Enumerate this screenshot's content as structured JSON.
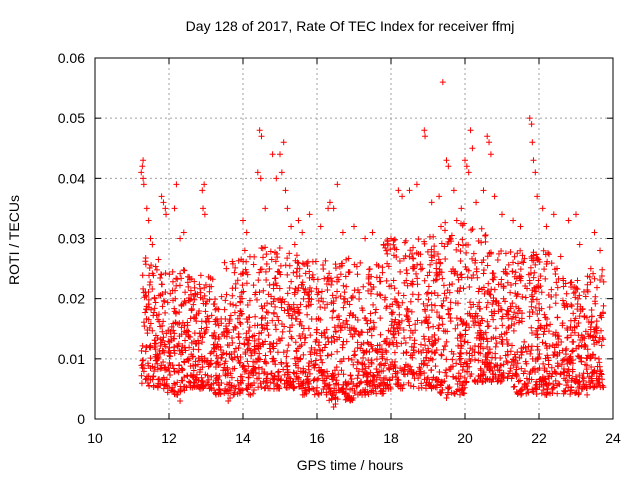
{
  "chart_data": {
    "type": "scatter",
    "title": "Day 128 of 2017, Rate Of TEC Index for receiver ffmj",
    "xlabel": "GPS time / hours",
    "ylabel": "ROTI / TECUs",
    "xlim": [
      10,
      24
    ],
    "ylim": [
      0,
      0.06
    ],
    "xticks": [
      "10",
      "12",
      "14",
      "16",
      "18",
      "20",
      "22",
      "24"
    ],
    "yticks": [
      "0",
      "0.01",
      "0.02",
      "0.03",
      "0.04",
      "0.05",
      "0.06"
    ],
    "grid": true,
    "marker": "+",
    "series": [
      {
        "name": "ROTI",
        "color": "#ff0000",
        "points": [
          [
            11.25,
            0.041
          ],
          [
            11.28,
            0.042
          ],
          [
            11.3,
            0.04
          ],
          [
            11.32,
            0.039
          ],
          [
            11.3,
            0.043
          ],
          [
            11.4,
            0.035
          ],
          [
            11.45,
            0.033
          ],
          [
            11.5,
            0.03
          ],
          [
            11.55,
            0.029
          ],
          [
            11.8,
            0.037
          ],
          [
            11.85,
            0.036
          ],
          [
            11.9,
            0.035
          ],
          [
            11.92,
            0.034
          ],
          [
            12.15,
            0.035
          ],
          [
            12.2,
            0.039
          ],
          [
            12.3,
            0.03
          ],
          [
            12.4,
            0.031
          ],
          [
            12.9,
            0.038
          ],
          [
            12.95,
            0.039
          ],
          [
            12.92,
            0.035
          ],
          [
            12.97,
            0.034
          ],
          [
            13.5,
            0.026
          ],
          [
            13.55,
            0.025
          ],
          [
            13.1,
            0.022
          ],
          [
            14.0,
            0.033
          ],
          [
            14.1,
            0.031
          ],
          [
            14.05,
            0.028
          ],
          [
            14.4,
            0.041
          ],
          [
            14.45,
            0.048
          ],
          [
            14.5,
            0.047
          ],
          [
            14.48,
            0.04
          ],
          [
            14.6,
            0.035
          ],
          [
            14.8,
            0.044
          ],
          [
            14.9,
            0.04
          ],
          [
            15.0,
            0.044
          ],
          [
            15.1,
            0.046
          ],
          [
            15.05,
            0.041
          ],
          [
            15.15,
            0.038
          ],
          [
            15.2,
            0.035
          ],
          [
            15.3,
            0.032
          ],
          [
            15.4,
            0.029
          ],
          [
            15.5,
            0.033
          ],
          [
            15.6,
            0.031
          ],
          [
            15.8,
            0.034
          ],
          [
            16.1,
            0.032
          ],
          [
            16.3,
            0.035
          ],
          [
            16.35,
            0.036
          ],
          [
            16.45,
            0.035
          ],
          [
            16.55,
            0.039
          ],
          [
            16.7,
            0.031
          ],
          [
            17.0,
            0.032
          ],
          [
            17.3,
            0.03
          ],
          [
            17.5,
            0.031
          ],
          [
            17.8,
            0.029
          ],
          [
            18.0,
            0.03
          ],
          [
            18.2,
            0.038
          ],
          [
            18.3,
            0.037
          ],
          [
            18.5,
            0.038
          ],
          [
            18.7,
            0.039
          ],
          [
            18.9,
            0.048
          ],
          [
            18.92,
            0.047
          ],
          [
            19.1,
            0.036
          ],
          [
            19.3,
            0.037
          ],
          [
            19.4,
            0.056
          ],
          [
            19.5,
            0.043
          ],
          [
            19.55,
            0.042
          ],
          [
            19.7,
            0.038
          ],
          [
            19.9,
            0.035
          ],
          [
            20.0,
            0.043
          ],
          [
            20.05,
            0.042
          ],
          [
            20.1,
            0.041
          ],
          [
            20.15,
            0.048
          ],
          [
            20.2,
            0.045
          ],
          [
            20.3,
            0.036
          ],
          [
            20.5,
            0.038
          ],
          [
            20.6,
            0.047
          ],
          [
            20.65,
            0.046
          ],
          [
            20.7,
            0.044
          ],
          [
            20.8,
            0.037
          ],
          [
            21.0,
            0.034
          ],
          [
            21.3,
            0.033
          ],
          [
            21.5,
            0.032
          ],
          [
            21.75,
            0.05
          ],
          [
            21.8,
            0.049
          ],
          [
            21.82,
            0.046
          ],
          [
            21.85,
            0.043
          ],
          [
            21.9,
            0.041
          ],
          [
            21.95,
            0.037
          ],
          [
            22.1,
            0.035
          ],
          [
            22.2,
            0.032
          ],
          [
            22.4,
            0.034
          ],
          [
            22.8,
            0.033
          ],
          [
            23.0,
            0.034
          ],
          [
            23.1,
            0.029
          ],
          [
            23.5,
            0.031
          ],
          [
            23.65,
            0.028
          ],
          [
            16.45,
            0.002
          ],
          [
            16.5,
            0.0025
          ],
          [
            13.6,
            0.003
          ],
          [
            13.65,
            0.0035
          ],
          [
            12.3,
            0.003
          ],
          [
            14.2,
            0.004
          ],
          [
            17.3,
            0.004
          ],
          [
            19.5,
            0.0035
          ],
          [
            22.2,
            0.004
          ],
          [
            23.3,
            0.004
          ]
        ],
        "cluster_ranges": [
          {
            "x_from": 11.25,
            "x_to": 11.95,
            "y_from": 0.005,
            "y_to": 0.027
          },
          {
            "x_from": 11.95,
            "x_to": 12.6,
            "y_from": 0.004,
            "y_to": 0.025
          },
          {
            "x_from": 12.6,
            "x_to": 13.2,
            "y_from": 0.005,
            "y_to": 0.024
          },
          {
            "x_from": 13.2,
            "x_to": 13.7,
            "y_from": 0.004,
            "y_to": 0.021
          },
          {
            "x_from": 13.7,
            "x_to": 14.3,
            "y_from": 0.004,
            "y_to": 0.027
          },
          {
            "x_from": 14.3,
            "x_to": 15.0,
            "y_from": 0.005,
            "y_to": 0.029
          },
          {
            "x_from": 15.0,
            "x_to": 15.6,
            "y_from": 0.005,
            "y_to": 0.028
          },
          {
            "x_from": 15.6,
            "x_to": 16.3,
            "y_from": 0.004,
            "y_to": 0.027
          },
          {
            "x_from": 16.3,
            "x_to": 17.0,
            "y_from": 0.003,
            "y_to": 0.027
          },
          {
            "x_from": 17.0,
            "x_to": 17.8,
            "y_from": 0.004,
            "y_to": 0.026
          },
          {
            "x_from": 17.8,
            "x_to": 18.6,
            "y_from": 0.005,
            "y_to": 0.03
          },
          {
            "x_from": 18.6,
            "x_to": 19.3,
            "y_from": 0.005,
            "y_to": 0.031
          },
          {
            "x_from": 19.3,
            "x_to": 20.0,
            "y_from": 0.004,
            "y_to": 0.033
          },
          {
            "x_from": 20.0,
            "x_to": 20.6,
            "y_from": 0.006,
            "y_to": 0.032
          },
          {
            "x_from": 20.6,
            "x_to": 21.3,
            "y_from": 0.006,
            "y_to": 0.028
          },
          {
            "x_from": 21.3,
            "x_to": 21.9,
            "y_from": 0.004,
            "y_to": 0.028
          },
          {
            "x_from": 21.9,
            "x_to": 22.6,
            "y_from": 0.004,
            "y_to": 0.028
          },
          {
            "x_from": 22.6,
            "x_to": 23.2,
            "y_from": 0.004,
            "y_to": 0.024
          },
          {
            "x_from": 23.2,
            "x_to": 23.75,
            "y_from": 0.005,
            "y_to": 0.025
          }
        ]
      }
    ]
  }
}
